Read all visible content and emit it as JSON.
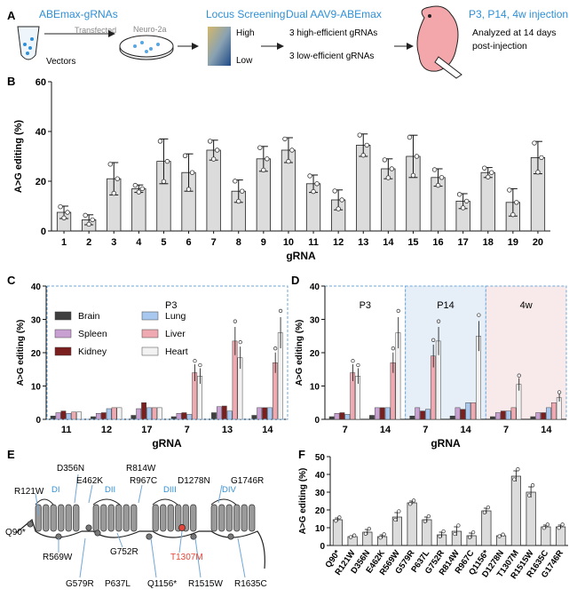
{
  "panelA": {
    "letter": "A",
    "step1_title": "ABEmax-gRNAs",
    "transfected": "Transfected",
    "cell_line": "Neuro-2a",
    "vectors": "Vectors",
    "step2_title": "Locus Screening",
    "high": "High",
    "low": "Low",
    "step3_title": "Dual AAV9-ABEmax",
    "high_eff": "3 high-efficient gRNAs",
    "low_eff": "3 low-efficient gRNAs",
    "step4_title": "P3, P14, 4w injection",
    "analyzed_1": "Analyzed at 14 days",
    "analyzed_2": "post-injection",
    "accent_color": "#2f8fd6"
  },
  "panelE": {
    "letter": "E",
    "domains": [
      "DI",
      "DII",
      "DIII",
      "DIV"
    ],
    "mutations": [
      "D356N",
      "R814W",
      "E462K",
      "R967C",
      "D1278N",
      "G1746R",
      "R121W",
      "Q90*",
      "R569W",
      "G752R",
      "T1307M",
      "G579R",
      "P637L",
      "Q1156*",
      "R1515W",
      "R1635C"
    ],
    "highlight": "T1307M",
    "highlight_color": "#e2463a"
  },
  "chart_data": [
    {
      "panel": "B",
      "type": "bar",
      "ylabel": "A>G editing (%)",
      "xlabel": "gRNA",
      "ylim": [
        0,
        60
      ],
      "yticks": [
        0,
        20,
        40,
        60
      ],
      "categories": [
        "1",
        "2",
        "3",
        "4",
        "5",
        "6",
        "7",
        "8",
        "9",
        "10",
        "11",
        "12",
        "13",
        "14",
        "15",
        "16",
        "17",
        "18",
        "19",
        "20"
      ],
      "values": [
        7.5,
        4.5,
        21,
        17,
        28,
        23.5,
        32.5,
        16,
        29,
        32.5,
        19,
        12.5,
        34.5,
        25,
        30,
        21.5,
        12,
        23.5,
        11.5,
        29.5
      ],
      "errors": [
        2.5,
        2,
        6.5,
        1.5,
        9,
        7.5,
        4,
        4.5,
        5,
        5,
        3.5,
        4,
        4.5,
        4,
        8.5,
        3.5,
        3,
        2,
        5.5,
        6.5
      ],
      "bar_color": "#dcdcdc"
    },
    {
      "panel": "C",
      "type": "bar",
      "ylabel": "A>G editing (%)",
      "xlabel": "gRNA",
      "ylim": [
        0,
        40
      ],
      "yticks": [
        0,
        10,
        20,
        30,
        40
      ],
      "annotation": "P3",
      "categories": [
        "11",
        "12",
        "17",
        "7",
        "13",
        "14"
      ],
      "series": [
        {
          "name": "Brain",
          "color": "#3f3f3f",
          "values": [
            1,
            0.8,
            1.2,
            0.8,
            2,
            1.2
          ]
        },
        {
          "name": "Spleen",
          "color": "#c8a0d2",
          "values": [
            2,
            1.8,
            3.2,
            1.8,
            3.8,
            3.5
          ]
        },
        {
          "name": "Kidney",
          "color": "#7a1e1e",
          "values": [
            2.5,
            2,
            5,
            2,
            4,
            3.5
          ]
        },
        {
          "name": "Lung",
          "color": "#a9c8ef",
          "values": [
            1.8,
            3.2,
            3.5,
            1.5,
            2.5,
            3.5
          ]
        },
        {
          "name": "Liver",
          "color": "#eeaab0",
          "values": [
            2.2,
            3.5,
            3.5,
            14,
            23.5,
            17
          ]
        },
        {
          "name": "Heart",
          "color": "#f2f2f2",
          "values": [
            2.2,
            3.5,
            3.5,
            13,
            18.5,
            26
          ]
        }
      ]
    },
    {
      "panel": "D",
      "type": "bar",
      "ylabel": "A>G editing (%)",
      "xlabel": "gRNA",
      "ylim": [
        0,
        40
      ],
      "yticks": [
        0,
        10,
        20,
        30,
        40
      ],
      "groups": [
        "P3",
        "P14",
        "4w"
      ],
      "categories": [
        "7",
        "14",
        "7",
        "14",
        "7",
        "14"
      ],
      "series": [
        {
          "name": "Brain",
          "color": "#3f3f3f",
          "values": [
            0.8,
            1.2,
            1,
            1,
            0.8,
            0.8
          ]
        },
        {
          "name": "Spleen",
          "color": "#c8a0d2",
          "values": [
            1.8,
            3.5,
            3.5,
            3.5,
            2,
            2
          ]
        },
        {
          "name": "Kidney",
          "color": "#7a1e1e",
          "values": [
            2,
            3.5,
            2.5,
            3,
            2.5,
            2
          ]
        },
        {
          "name": "Lung",
          "color": "#a9c8ef",
          "values": [
            1.5,
            3.5,
            3,
            5,
            2.5,
            3.5
          ]
        },
        {
          "name": "Liver",
          "color": "#eeaab0",
          "values": [
            14,
            17,
            19,
            5,
            3.5,
            5
          ]
        },
        {
          "name": "Heart",
          "color": "#f2f2f2",
          "values": [
            13,
            26,
            23.5,
            25,
            10.5,
            6.5
          ]
        }
      ]
    },
    {
      "panel": "F",
      "type": "bar",
      "ylabel": "A>G editing (%)",
      "ylim": [
        0,
        50
      ],
      "yticks": [
        0,
        10,
        20,
        30,
        40,
        50
      ],
      "categories": [
        "Q90*",
        "R121W",
        "D356N",
        "E462K",
        "R569W",
        "G579R",
        "P637L",
        "G752R",
        "R814W",
        "R967C",
        "Q1156*",
        "D1278N",
        "T1307M",
        "R1515W",
        "R1635C",
        "G1746R"
      ],
      "values": [
        14.5,
        5,
        7.5,
        5,
        16,
        24,
        14.5,
        6,
        8,
        5.5,
        19.5,
        5.5,
        39,
        30,
        10.5,
        10.5
      ],
      "errors": [
        1,
        0.5,
        1.5,
        1,
        2.5,
        1,
        1.5,
        1.5,
        2.5,
        1.5,
        1.5,
        0.5,
        3,
        3,
        1,
        1
      ],
      "bar_color": "#dcdcdc"
    }
  ]
}
